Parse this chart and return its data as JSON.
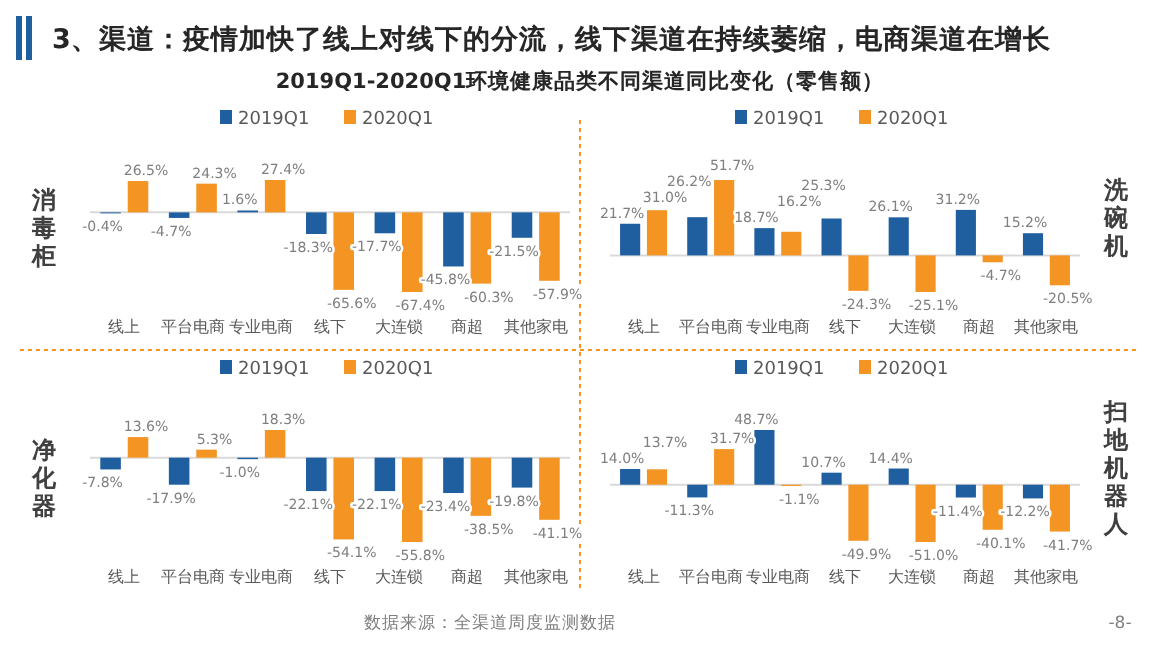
{
  "chart_data": [
    {
      "type": "bar",
      "ylabel": "消毒柜",
      "annotations": [
        "3、渠道：疫情加快了线上对线下的分流，线下渠道在持续萎缩，电商渠道在增长",
        "2019Q1-2020Q1环境健康品类不同渠道同比变化（零售额）"
      ],
      "categories": [
        "线上",
        "平台电商",
        "专业电商",
        "线下",
        "大连锁",
        "商超",
        "其他家电"
      ],
      "series": [
        {
          "name": "2019Q1",
          "color": "#1f5fa0",
          "values": [
            -0.4,
            -4.7,
            1.6,
            -18.3,
            -17.7,
            -45.8,
            -21.5
          ],
          "value_labels": [
            "-0.4%",
            "-4.7%",
            "1.6%",
            "-18.3%",
            "-17.7%",
            "-45.8%",
            "-21.5%"
          ]
        },
        {
          "name": "2020Q1",
          "color": "#f39423",
          "values": [
            26.5,
            24.3,
            27.4,
            -65.6,
            -67.4,
            -60.3,
            -57.9
          ],
          "value_labels": [
            "26.5%",
            "24.3%",
            "27.4%",
            "-65.6%",
            "-67.4%",
            "-60.3%",
            "-57.9%"
          ]
        }
      ],
      "legend": "top"
    },
    {
      "type": "bar",
      "y2label": "洗碗机",
      "categories": [
        "线上",
        "平台电商",
        "专业电商",
        "线下",
        "大连锁",
        "商超",
        "其他家电"
      ],
      "series": [
        {
          "name": "2019Q1",
          "color": "#1f5fa0",
          "values": [
            21.7,
            26.2,
            18.7,
            25.3,
            26.1,
            31.2,
            15.2
          ],
          "value_labels": [
            "21.7%",
            "26.2%",
            "18.7%",
            "25.3%",
            "26.1%",
            "31.2%",
            "15.2%"
          ]
        },
        {
          "name": "2020Q1",
          "color": "#f39423",
          "values": [
            31.0,
            51.7,
            16.2,
            -24.3,
            -25.1,
            -4.7,
            -20.5
          ],
          "value_labels": [
            "31.0%",
            "51.7%",
            "16.2%",
            "-24.3%",
            "-25.1%",
            "-4.7%",
            "-20.5%"
          ]
        }
      ],
      "legend": "top"
    },
    {
      "type": "bar",
      "ylabel": "净化器",
      "categories": [
        "线上",
        "平台电商",
        "专业电商",
        "线下",
        "大连锁",
        "商超",
        "其他家电"
      ],
      "series": [
        {
          "name": "2019Q1",
          "color": "#1f5fa0",
          "values": [
            -7.8,
            -17.9,
            -1.0,
            -22.1,
            -22.1,
            -23.4,
            -19.8
          ],
          "value_labels": [
            "-7.8%",
            "-17.9%",
            "-1.0%",
            "-22.1%",
            "-22.1%",
            "-23.4%",
            "-19.8%"
          ]
        },
        {
          "name": "2020Q1",
          "color": "#f39423",
          "values": [
            13.6,
            5.3,
            18.3,
            -54.1,
            -55.8,
            -38.5,
            -41.1
          ],
          "value_labels": [
            "13.6%",
            "5.3%",
            "18.3%",
            "-54.1%",
            "-55.8%",
            "-38.5%",
            "-41.1%"
          ]
        }
      ],
      "legend": "top"
    },
    {
      "type": "bar",
      "y2label": "扫地机器人",
      "annotations": [
        "数据来源：全渠道周度监测数据",
        "-8-"
      ],
      "categories": [
        "线上",
        "平台电商",
        "专业电商",
        "线下",
        "大连锁",
        "商超",
        "其他家电"
      ],
      "series": [
        {
          "name": "2019Q1",
          "color": "#1f5fa0",
          "values": [
            14.0,
            -11.3,
            48.7,
            10.7,
            14.4,
            -11.4,
            -12.2
          ],
          "value_labels": [
            "14.0%",
            "-11.3%",
            "48.7%",
            "10.7%",
            "14.4%",
            "-11.4%",
            "-12.2%"
          ]
        },
        {
          "name": "2020Q1",
          "color": "#f39423",
          "values": [
            13.7,
            31.7,
            -1.1,
            -49.9,
            -51.0,
            -40.1,
            -41.7
          ],
          "value_labels": [
            "13.7%",
            "31.7%",
            "-1.1%",
            "-49.9%",
            "-51.0%",
            "-40.1%",
            "-41.7%"
          ]
        }
      ],
      "legend": "top"
    }
  ]
}
